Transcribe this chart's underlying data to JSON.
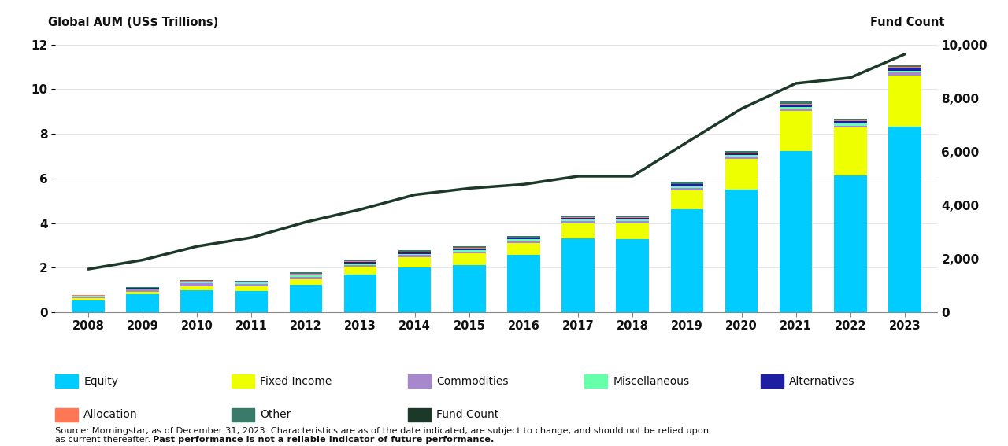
{
  "years": [
    2008,
    2009,
    2010,
    2011,
    2012,
    2013,
    2014,
    2015,
    2016,
    2017,
    2018,
    2019,
    2020,
    2021,
    2022,
    2023
  ],
  "equity": [
    0.52,
    0.8,
    1.0,
    0.96,
    1.22,
    1.68,
    2.02,
    2.12,
    2.58,
    3.32,
    3.27,
    4.6,
    5.5,
    7.22,
    6.12,
    8.33
  ],
  "fixed_income": [
    0.1,
    0.12,
    0.17,
    0.2,
    0.27,
    0.35,
    0.44,
    0.51,
    0.53,
    0.68,
    0.73,
    0.88,
    1.38,
    1.8,
    2.15,
    2.3
  ],
  "commodities": [
    0.09,
    0.1,
    0.13,
    0.12,
    0.11,
    0.1,
    0.1,
    0.1,
    0.09,
    0.1,
    0.09,
    0.09,
    0.09,
    0.1,
    0.1,
    0.11
  ],
  "miscellaneous": [
    0.02,
    0.03,
    0.03,
    0.04,
    0.05,
    0.06,
    0.06,
    0.06,
    0.06,
    0.07,
    0.07,
    0.08,
    0.08,
    0.09,
    0.09,
    0.09
  ],
  "alternatives": [
    0.02,
    0.03,
    0.04,
    0.04,
    0.05,
    0.06,
    0.06,
    0.07,
    0.07,
    0.07,
    0.07,
    0.08,
    0.08,
    0.1,
    0.1,
    0.12
  ],
  "allocation": [
    0.01,
    0.02,
    0.02,
    0.02,
    0.03,
    0.03,
    0.03,
    0.03,
    0.03,
    0.03,
    0.03,
    0.03,
    0.03,
    0.04,
    0.04,
    0.04
  ],
  "other": [
    0.02,
    0.03,
    0.04,
    0.04,
    0.05,
    0.06,
    0.07,
    0.07,
    0.07,
    0.08,
    0.07,
    0.08,
    0.08,
    0.09,
    0.09,
    0.09
  ],
  "fund_count": [
    1610,
    1950,
    2460,
    2790,
    3370,
    3840,
    4390,
    4630,
    4779,
    5083,
    5083,
    6351,
    7602,
    8552,
    8764,
    9642
  ],
  "colors": {
    "equity": "#00CCFF",
    "fixed_income": "#EEFF00",
    "commodities": "#A888CC",
    "miscellaneous": "#66FFAA",
    "alternatives": "#1E1EA0",
    "allocation": "#FF7755",
    "other": "#3A7A6A",
    "fund_count_line": "#1C3828"
  },
  "left_ylim": [
    0,
    12
  ],
  "right_ylim": [
    0,
    10000
  ],
  "left_yticks": [
    0,
    2,
    4,
    6,
    8,
    10,
    12
  ],
  "right_yticks": [
    0,
    2000,
    4000,
    6000,
    8000,
    10000
  ],
  "left_ylabel": "Global AUM (US$ Trillions)",
  "right_ylabel": "Fund Count",
  "background_color": "#FFFFFF",
  "source_line1": "Source: Morningstar, as of December 31, 2023. Characteristics are as of the date indicated, are subject to change, and should not be relied upon",
  "source_line2_normal": "as current thereafter. ",
  "source_line2_bold": "Past performance is not a reliable indicator of future performance."
}
